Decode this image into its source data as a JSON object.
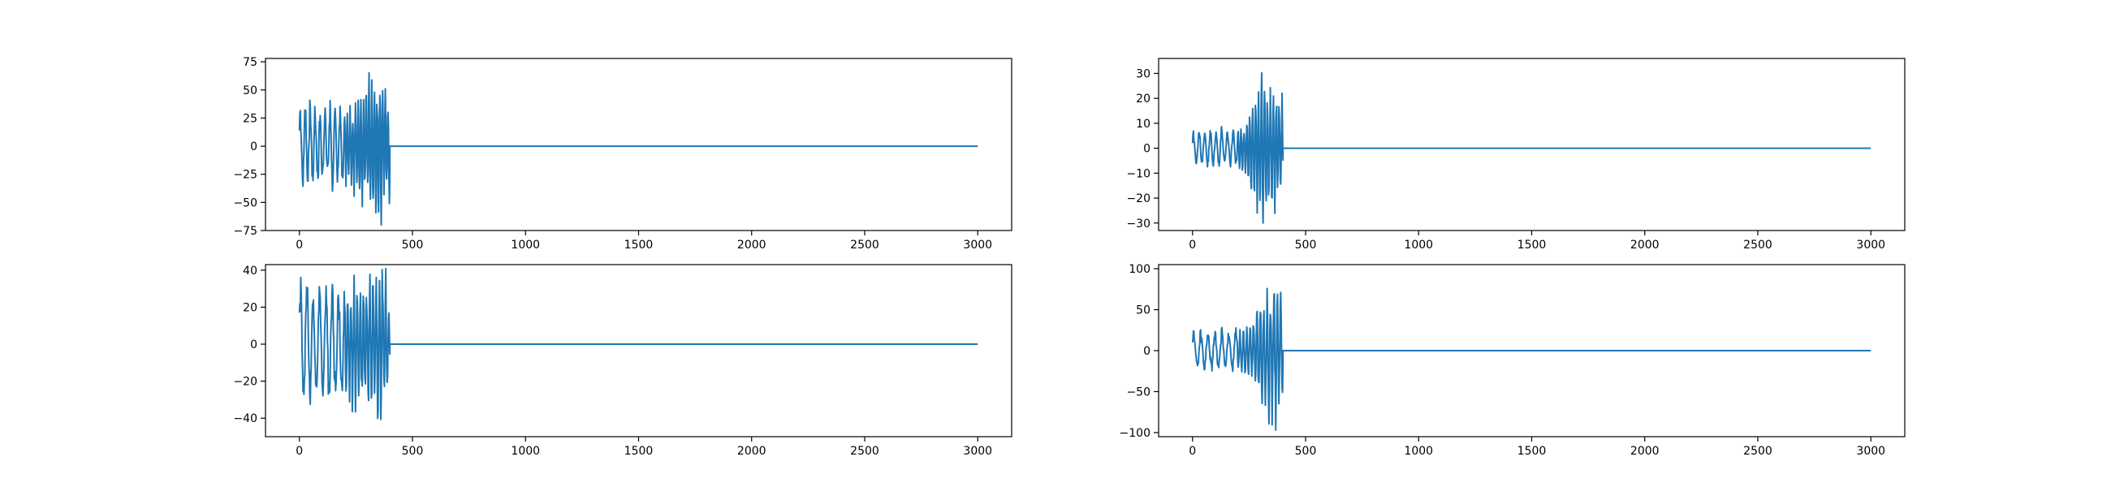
{
  "figure": {
    "line_color": "#1f77b4",
    "background": "#ffffff"
  },
  "chart_data": [
    {
      "type": "line",
      "position": "top-left",
      "title": "",
      "xlabel": "",
      "ylabel": "",
      "xlim": [
        -150,
        3150
      ],
      "ylim": [
        -75,
        78
      ],
      "xticks": [
        0,
        500,
        1000,
        1500,
        2000,
        2500,
        3000
      ],
      "yticks": [
        -75,
        -50,
        -25,
        0,
        25,
        50,
        75
      ],
      "grid": false,
      "signal": {
        "active_until": 400,
        "last_x": 3000,
        "envelope": [
          [
            0,
            38
          ],
          [
            200,
            38
          ],
          [
            220,
            35
          ],
          [
            250,
            42
          ],
          [
            290,
            60
          ],
          [
            330,
            75
          ],
          [
            360,
            72
          ],
          [
            380,
            60
          ],
          [
            400,
            55
          ]
        ],
        "min_value": -70,
        "max_value": 76
      }
    },
    {
      "type": "line",
      "position": "top-right",
      "title": "",
      "xlabel": "",
      "ylabel": "",
      "xlim": [
        -150,
        3150
      ],
      "ylim": [
        -33,
        36
      ],
      "xticks": [
        0,
        500,
        1000,
        1500,
        2000,
        2500,
        3000
      ],
      "yticks": [
        -30,
        -20,
        -10,
        0,
        10,
        20,
        30
      ],
      "grid": false,
      "signal": {
        "active_until": 400,
        "last_x": 3000,
        "envelope": [
          [
            0,
            8
          ],
          [
            200,
            8
          ],
          [
            240,
            12
          ],
          [
            270,
            20
          ],
          [
            300,
            28
          ],
          [
            310,
            33
          ],
          [
            340,
            25
          ],
          [
            380,
            22
          ],
          [
            400,
            20
          ]
        ],
        "min_value": -30,
        "max_value": 33
      }
    },
    {
      "type": "line",
      "position": "bottom-left",
      "title": "",
      "xlabel": "",
      "ylabel": "",
      "xlim": [
        -150,
        3150
      ],
      "ylim": [
        -50,
        43
      ],
      "xticks": [
        0,
        500,
        1000,
        1500,
        2000,
        2500,
        3000
      ],
      "yticks": [
        -40,
        -20,
        0,
        20,
        40
      ],
      "grid": false,
      "signal": {
        "active_until": 400,
        "last_x": 3000,
        "envelope": [
          [
            0,
            34
          ],
          [
            100,
            35
          ],
          [
            200,
            33
          ],
          [
            260,
            37
          ],
          [
            300,
            36
          ],
          [
            350,
            42
          ],
          [
            370,
            48
          ],
          [
            390,
            30
          ],
          [
            400,
            24
          ]
        ],
        "min_value": -49,
        "max_value": 42
      }
    },
    {
      "type": "line",
      "position": "bottom-right",
      "title": "",
      "xlabel": "",
      "ylabel": "",
      "xlim": [
        -150,
        3150
      ],
      "ylim": [
        -105,
        105
      ],
      "xticks": [
        0,
        500,
        1000,
        1500,
        2000,
        2500,
        3000
      ],
      "yticks": [
        -100,
        -50,
        0,
        50,
        100
      ],
      "grid": false,
      "signal": {
        "active_until": 400,
        "last_x": 3000,
        "envelope": [
          [
            0,
            25
          ],
          [
            200,
            25
          ],
          [
            260,
            40
          ],
          [
            290,
            60
          ],
          [
            330,
            75
          ],
          [
            360,
            95
          ],
          [
            380,
            90
          ],
          [
            400,
            60
          ]
        ],
        "min_value": -97,
        "max_value": 97
      }
    }
  ]
}
